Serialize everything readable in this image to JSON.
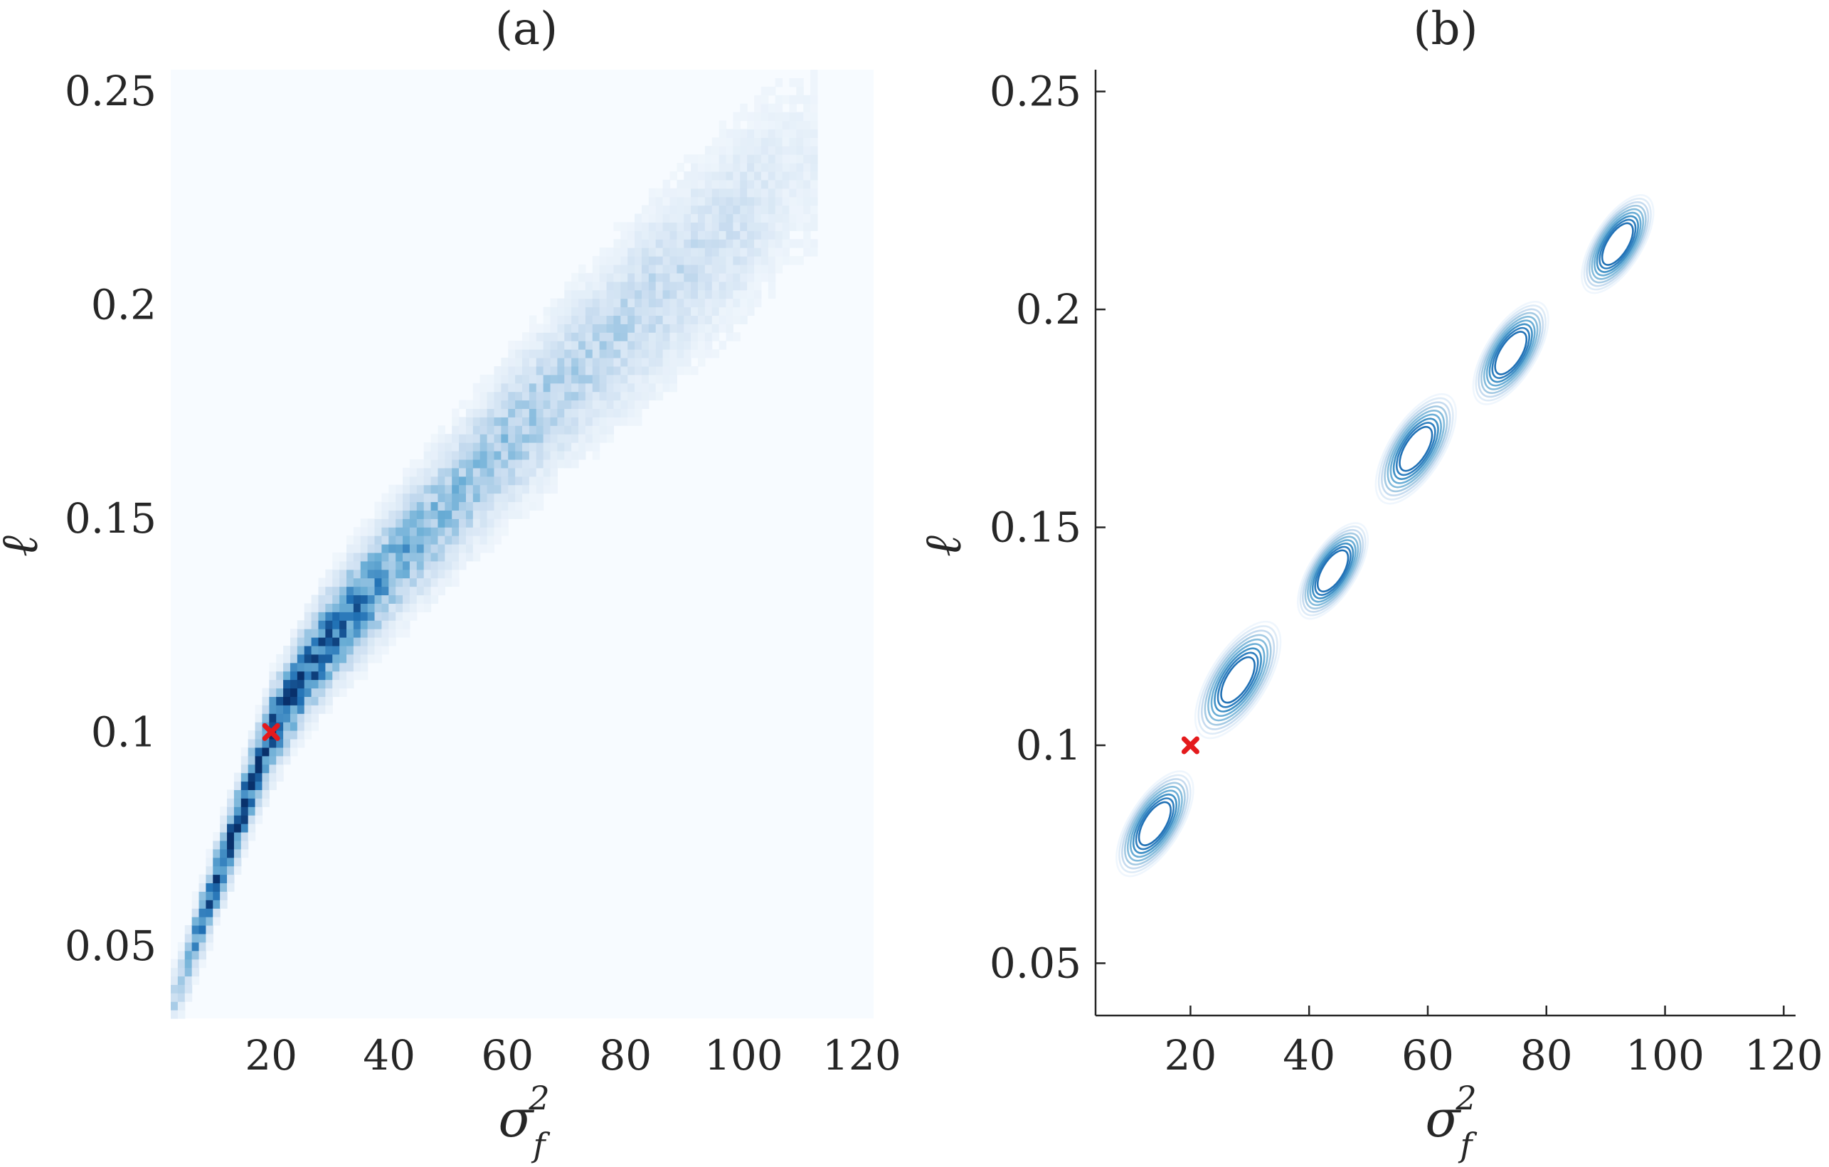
{
  "chart_data": [
    {
      "panel": "a",
      "type": "heatmap",
      "title": "(a)",
      "xlabel": "σ",
      "xlabel_sup": "2",
      "xlabel_sub": "f",
      "ylabel": "ℓ",
      "xlim": [
        3,
        122
      ],
      "ylim": [
        0.033,
        0.255
      ],
      "xticks": [
        20,
        40,
        60,
        80,
        100,
        120
      ],
      "xtick_labels": [
        "20",
        "40",
        "60",
        "80",
        "100",
        "120"
      ],
      "yticks": [
        0.05,
        0.1,
        0.15,
        0.2,
        0.25
      ],
      "ytick_labels": [
        "0.05",
        "0.1",
        "0.15",
        "0.2",
        "0.25"
      ],
      "colormap": [
        "#f7fbff",
        "#c6dbef",
        "#6baed6",
        "#2171b5",
        "#08306b"
      ],
      "ridge": {
        "x": [
          4,
          8,
          12,
          16,
          20,
          25,
          30,
          35,
          40,
          50,
          60,
          70,
          80,
          90,
          100,
          108
        ],
        "y": [
          0.038,
          0.055,
          0.07,
          0.085,
          0.1,
          0.112,
          0.122,
          0.13,
          0.138,
          0.153,
          0.168,
          0.182,
          0.195,
          0.208,
          0.22,
          0.232
        ],
        "density": [
          0.35,
          0.75,
          0.95,
          1.0,
          1.0,
          0.95,
          0.9,
          0.75,
          0.6,
          0.45,
          0.4,
          0.33,
          0.3,
          0.25,
          0.2,
          0.1
        ]
      },
      "true_value": {
        "x": 20,
        "y": 0.1,
        "color": "#e41a1c"
      }
    },
    {
      "panel": "b",
      "type": "contour",
      "title": "(b)",
      "xlabel": "σ",
      "xlabel_sup": "2",
      "xlabel_sub": "f",
      "ylabel": "ℓ",
      "xlim": [
        4,
        122
      ],
      "ylim": [
        0.038,
        0.255
      ],
      "xticks": [
        20,
        40,
        60,
        80,
        100,
        120
      ],
      "xtick_labels": [
        "20",
        "40",
        "60",
        "80",
        "100",
        "120"
      ],
      "yticks": [
        0.05,
        0.1,
        0.15,
        0.2,
        0.25
      ],
      "ytick_labels": [
        "0.05",
        "0.1",
        "0.15",
        "0.2",
        "0.25"
      ],
      "levels": 10,
      "contour_colors": [
        "#eff6fd",
        "#deebf7",
        "#c6dbef",
        "#a5cae3",
        "#85bcdc",
        "#6baed6",
        "#4292c6",
        "#2f7fbf",
        "#2171b5",
        "#08519c"
      ],
      "peaks": [
        {
          "x": 14,
          "y": 0.082,
          "weight": 0.75
        },
        {
          "x": 28,
          "y": 0.115,
          "weight": 1.0
        },
        {
          "x": 44,
          "y": 0.14,
          "weight": 0.55
        },
        {
          "x": 58,
          "y": 0.168,
          "weight": 0.85
        },
        {
          "x": 74,
          "y": 0.19,
          "weight": 0.7
        },
        {
          "x": 92,
          "y": 0.215,
          "weight": 0.6
        }
      ],
      "true_value": {
        "x": 20,
        "y": 0.1,
        "color": "#e41a1c"
      }
    }
  ]
}
